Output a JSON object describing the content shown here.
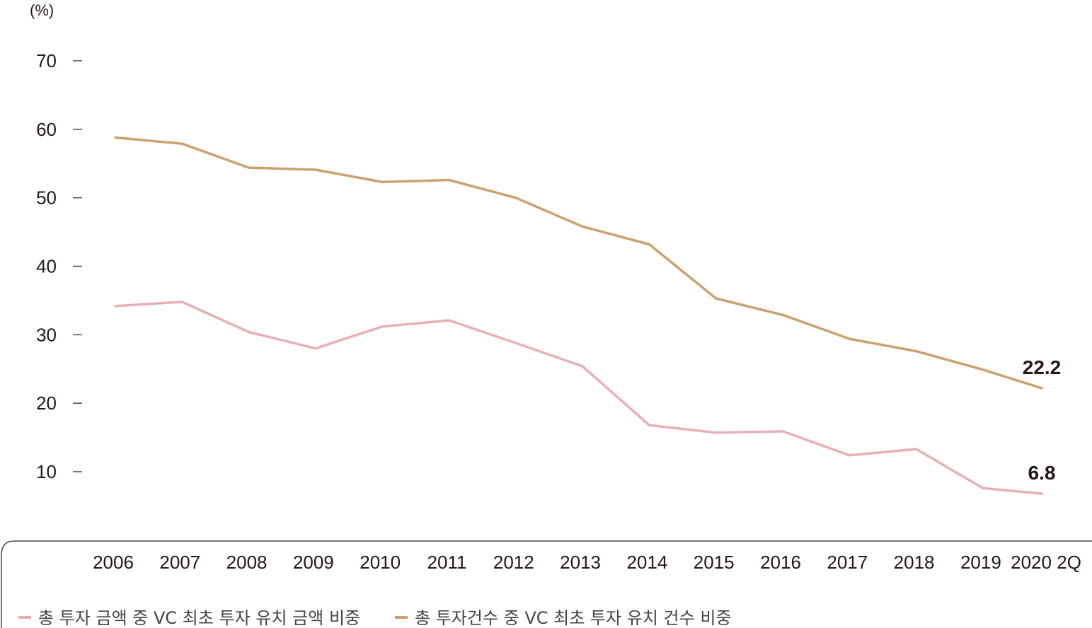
{
  "chart_data": {
    "type": "line",
    "unit_label": "(%)",
    "categories": [
      "2006",
      "2007",
      "2008",
      "2009",
      "2010",
      "2011",
      "2012",
      "2013",
      "2014",
      "2015",
      "2016",
      "2017",
      "2018",
      "2019",
      "2020 2Q"
    ],
    "y_ticks": [
      "70",
      "60",
      "50",
      "40",
      "30",
      "20",
      "10"
    ],
    "ylim": [
      0,
      70
    ],
    "grid": false,
    "legend_position": "bottom-left",
    "series": [
      {
        "name": "총 투자 금액 중 VC 최초 투자 유치 금액 비중",
        "color": "#e9afb7",
        "values": [
          34.2,
          34.8,
          30.4,
          28.0,
          31.2,
          32.1,
          28.8,
          25.4,
          16.8,
          15.7,
          15.9,
          12.4,
          13.3,
          7.6,
          6.8
        ],
        "end_label": "6.8"
      },
      {
        "name": "총 투자건수 중 VC 최초 투자 유치 건수 비중",
        "color": "#c9a26d",
        "values": [
          58.8,
          57.9,
          54.4,
          54.1,
          52.3,
          52.6,
          50.0,
          45.8,
          43.2,
          35.3,
          32.9,
          29.4,
          27.6,
          24.9,
          22.2
        ],
        "end_label": "22.2"
      }
    ]
  }
}
